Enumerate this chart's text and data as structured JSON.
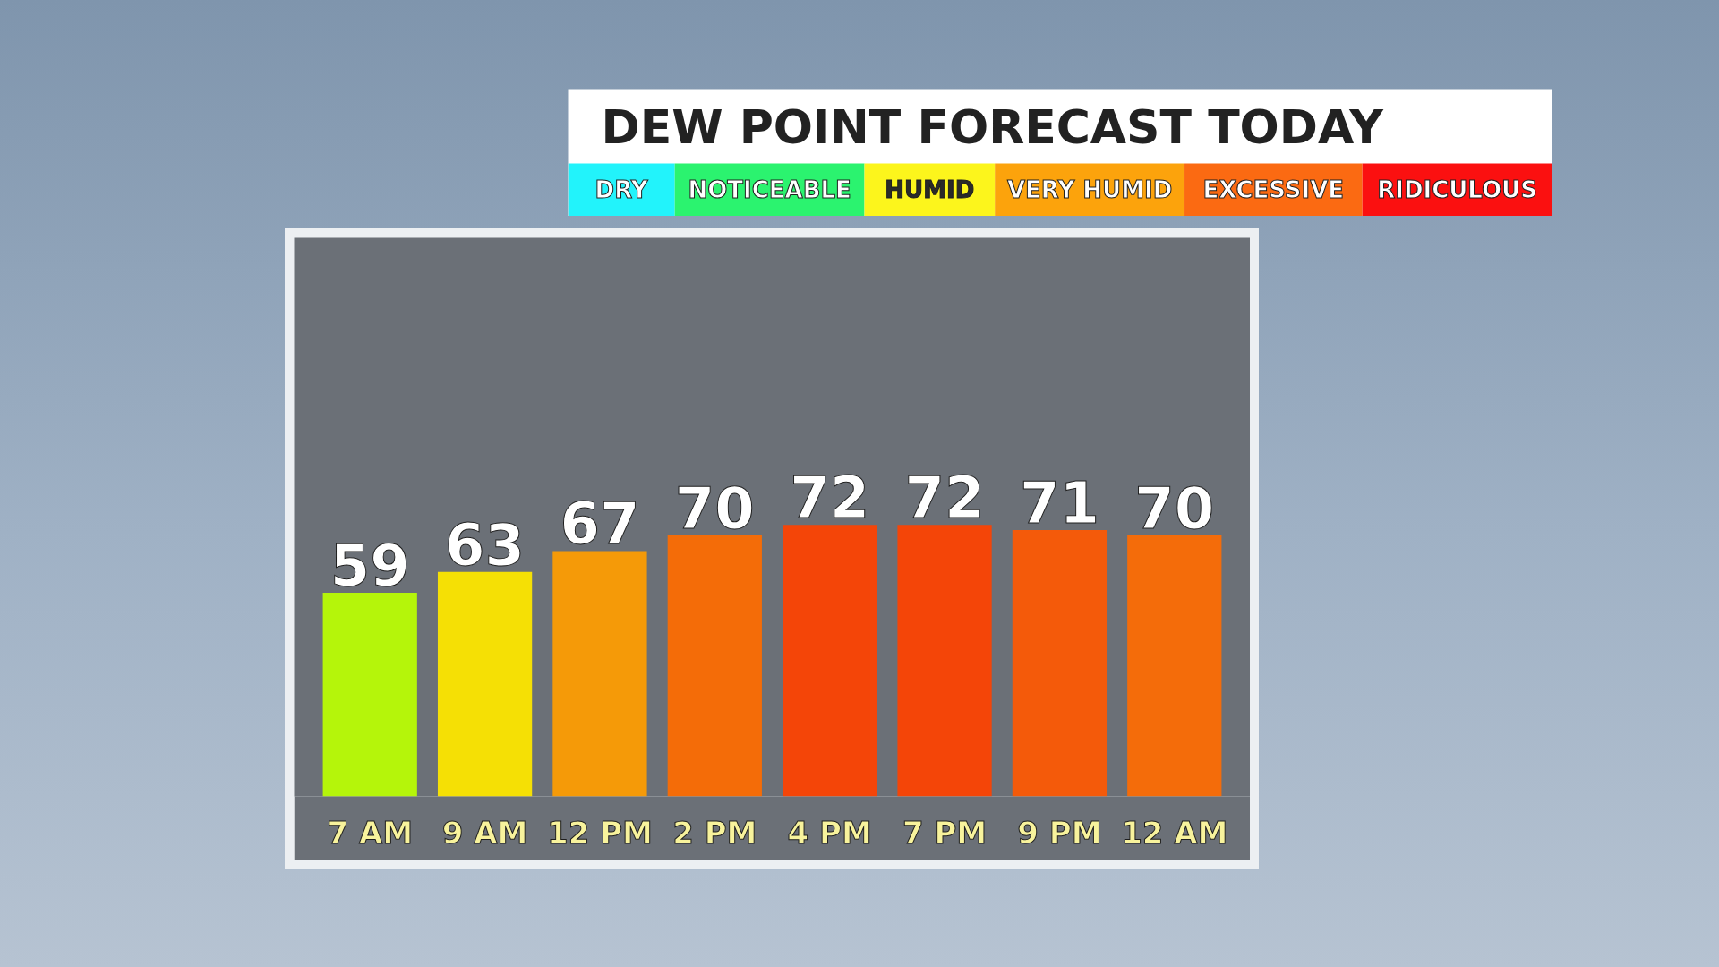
{
  "chart_data": [
    {
      "type": "other",
      "title": "DEW POINT FORECAST TODAY",
      "categories": [
        "DRY",
        "NOTICEABLE",
        "HUMID",
        "VERY HUMID",
        "EXCESSIVE",
        "RIDICULOUS"
      ],
      "colors": [
        "#22f3fb",
        "#2bf36f",
        "#fcf51c",
        "#fca30c",
        "#fb6a12",
        "#fb1010"
      ]
    },
    {
      "type": "bar",
      "categories": [
        "7 AM",
        "9 AM",
        "12 PM",
        "2 PM",
        "4 PM",
        "7 PM",
        "9 PM",
        "12 AM"
      ],
      "values": [
        59,
        63,
        67,
        70,
        72,
        72,
        71,
        70
      ],
      "colors": [
        "#b5f50a",
        "#f5e005",
        "#f59a08",
        "#f46c08",
        "#f44508",
        "#f44508",
        "#f45a0a",
        "#f46c0a"
      ],
      "ylim": [
        20,
        127
      ],
      "data_labels": true,
      "tick_labels": "x",
      "grid": false
    }
  ]
}
